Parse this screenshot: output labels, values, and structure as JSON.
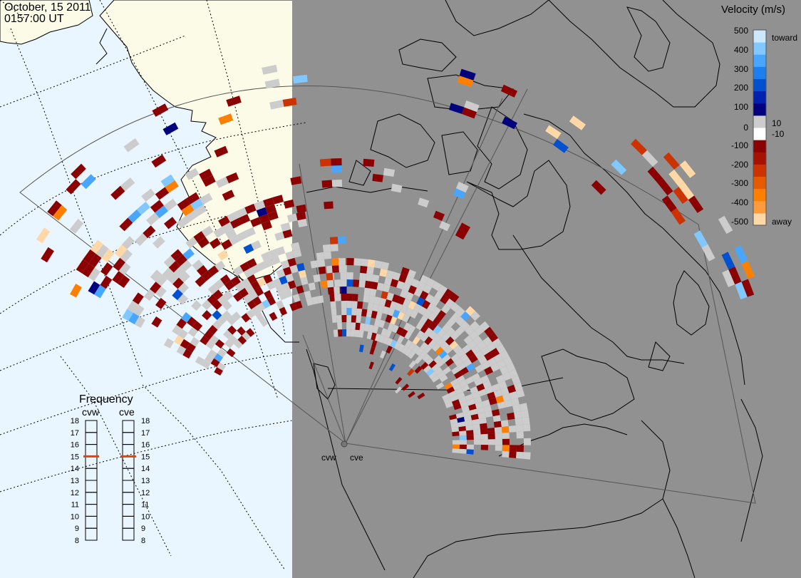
{
  "header": {
    "date": "October, 15 2011",
    "time": "0157:00 UT"
  },
  "colorbar": {
    "title": "Velocity (m/s)",
    "tick_labels": [
      "500",
      "400",
      "300",
      "200",
      "100",
      "10",
      "0",
      "-10",
      "-100",
      "-200",
      "-300",
      "-400",
      "-500"
    ],
    "toward_label": "toward",
    "away_label": "away",
    "colors": [
      "#ffd8a8",
      "#ff9b3c",
      "#ff7f00",
      "#e65a00",
      "#cc3300",
      "#a61100",
      "#8b0000",
      "#ffffff",
      "#cccccc",
      "#00007f",
      "#0020b0",
      "#0050d0",
      "#1d7ef0",
      "#48a6ff",
      "#80c8ff",
      "#cce8ff"
    ]
  },
  "frequency_panel": {
    "title": "Frequency",
    "radars": [
      {
        "name": "cvw",
        "frequency": 15
      },
      {
        "name": "cve",
        "frequency": 15
      }
    ],
    "scale_labels": [
      "18",
      "17",
      "16",
      "15",
      "14",
      "13",
      "12",
      "11",
      "10",
      "9",
      "8"
    ]
  },
  "radar_sites": [
    {
      "name": "cvw"
    },
    {
      "name": "cve"
    }
  ],
  "colors": {
    "night_shade": "#919191",
    "ocean_day": "#eaf6ff",
    "land_day": "#fbfbe8",
    "ground_scatter": "#cccccc",
    "away_dark": "#8b0000",
    "toward_dark": "#00007f",
    "frequency_marker": "#e0440e"
  }
}
